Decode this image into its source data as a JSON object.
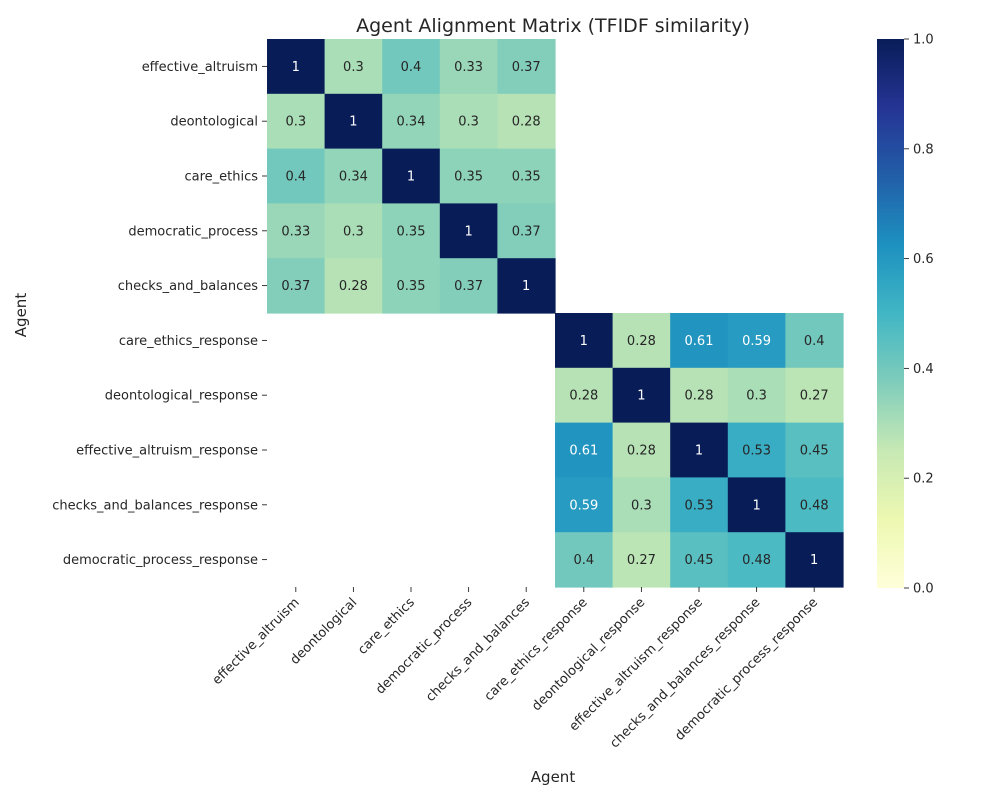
{
  "chart_data": {
    "type": "heatmap",
    "title": "Agent Alignment Matrix (TFIDF similarity)",
    "xlabel": "Agent",
    "ylabel": "Agent",
    "x_categories": [
      "effective_altruism",
      "deontological",
      "care_ethics",
      "democratic_process",
      "checks_and_balances",
      "care_ethics_response",
      "deontological_response",
      "effective_altruism_response",
      "checks_and_balances_response",
      "democratic_process_response"
    ],
    "y_categories": [
      "effective_altruism",
      "deontological",
      "care_ethics",
      "democratic_process",
      "checks_and_balances",
      "care_ethics_response",
      "deontological_response",
      "effective_altruism_response",
      "checks_and_balances_response",
      "democratic_process_response"
    ],
    "values": [
      [
        1,
        0.3,
        0.4,
        0.33,
        0.37,
        null,
        null,
        null,
        null,
        null
      ],
      [
        0.3,
        1,
        0.34,
        0.3,
        0.28,
        null,
        null,
        null,
        null,
        null
      ],
      [
        0.4,
        0.34,
        1,
        0.35,
        0.35,
        null,
        null,
        null,
        null,
        null
      ],
      [
        0.33,
        0.3,
        0.35,
        1,
        0.37,
        null,
        null,
        null,
        null,
        null
      ],
      [
        0.37,
        0.28,
        0.35,
        0.37,
        1,
        null,
        null,
        null,
        null,
        null
      ],
      [
        null,
        null,
        null,
        null,
        null,
        1,
        0.28,
        0.61,
        0.59,
        0.4
      ],
      [
        null,
        null,
        null,
        null,
        null,
        0.28,
        1,
        0.28,
        0.3,
        0.27
      ],
      [
        null,
        null,
        null,
        null,
        null,
        0.61,
        0.28,
        1,
        0.53,
        0.45
      ],
      [
        null,
        null,
        null,
        null,
        null,
        0.59,
        0.3,
        0.53,
        1,
        0.48
      ],
      [
        null,
        null,
        null,
        null,
        null,
        0.4,
        0.27,
        0.45,
        0.48,
        1
      ]
    ],
    "colorbar": {
      "colormap": "YlGnBu",
      "range": [
        0,
        1
      ],
      "ticks": [
        "0.0",
        "0.2",
        "0.4",
        "0.6",
        "0.8",
        "1.0"
      ]
    },
    "colormap_stops": [
      [
        0.0,
        "#ffffd9"
      ],
      [
        0.125,
        "#edf8b1"
      ],
      [
        0.25,
        "#c7e9b4"
      ],
      [
        0.375,
        "#7fcdbb"
      ],
      [
        0.5,
        "#41b6c4"
      ],
      [
        0.625,
        "#1d91c0"
      ],
      [
        0.75,
        "#225ea8"
      ],
      [
        0.875,
        "#253494"
      ],
      [
        1.0,
        "#081d58"
      ]
    ],
    "grid": false,
    "legend": "colorbar-right"
  }
}
